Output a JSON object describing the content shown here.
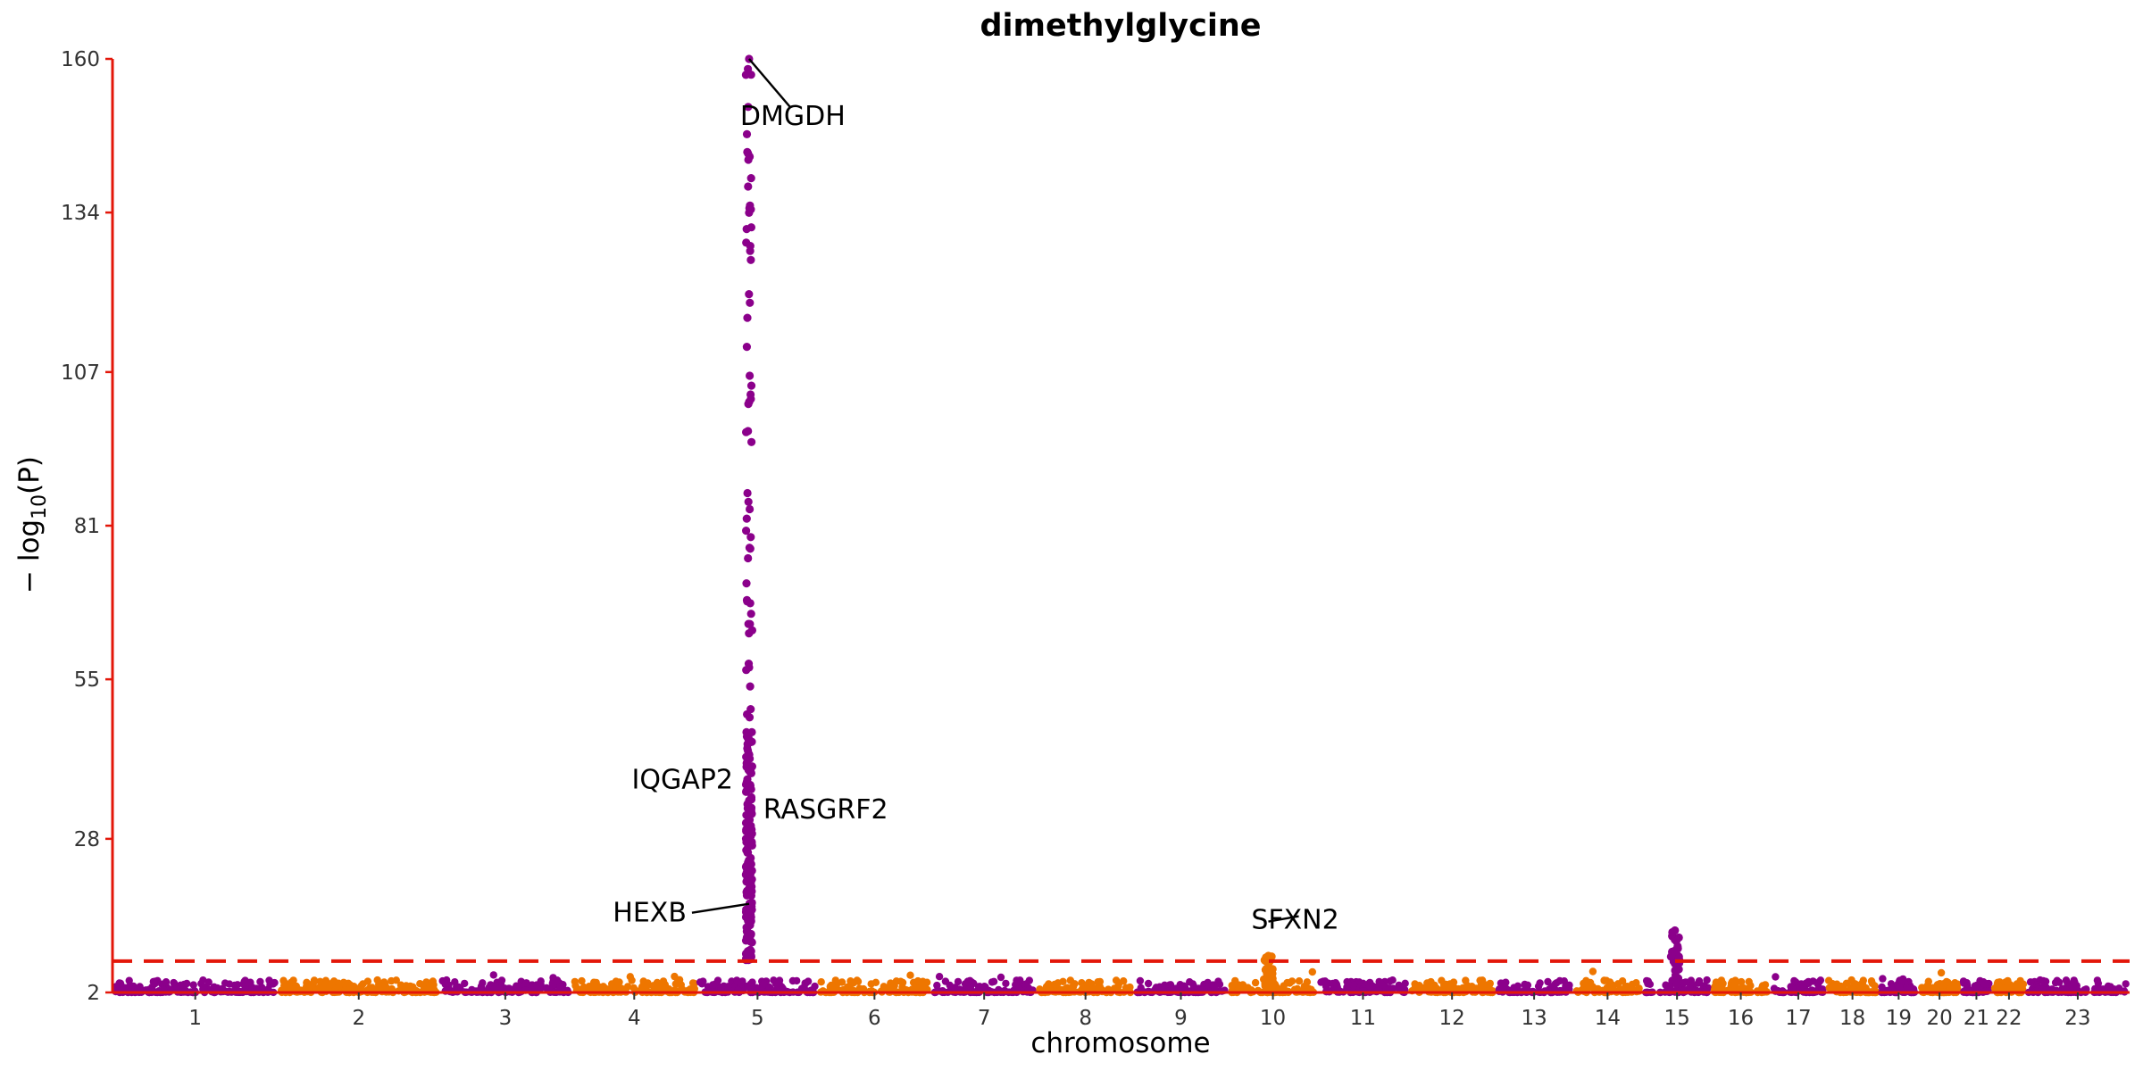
{
  "chart_data": {
    "type": "scatter",
    "subtype": "manhattan",
    "title": "dimethylglycine",
    "xlabel": "chromosome",
    "ylabel": "− log10(P)",
    "ylim": [
      2,
      160
    ],
    "y_ticks": [
      2,
      28,
      55,
      81,
      107,
      134,
      160
    ],
    "chromosomes": [
      "1",
      "2",
      "3",
      "4",
      "5",
      "6",
      "7",
      "8",
      "9",
      "10",
      "11",
      "12",
      "13",
      "14",
      "15",
      "16",
      "17",
      "18",
      "19",
      "20",
      "21",
      "22",
      "23"
    ],
    "chromosome_sizes": [
      249,
      243,
      198,
      190,
      181,
      171,
      159,
      146,
      141,
      136,
      135,
      133,
      114,
      107,
      102,
      90,
      83,
      80,
      59,
      64,
      47,
      51,
      156
    ],
    "series_colors": [
      "#8b008b",
      "#ee7600"
    ],
    "significance_threshold": {
      "value": 7.3,
      "color": "#e3170a",
      "style": "dashed"
    },
    "peaks": [
      {
        "chromosome": "5",
        "position_fraction": 0.43,
        "max_y": 160,
        "min_y": 7.5
      },
      {
        "chromosome": "10",
        "position_fraction": 0.45,
        "max_y": 8.2,
        "min_y": 3
      },
      {
        "chromosome": "15",
        "position_fraction": 0.47,
        "max_y": 12.5,
        "min_y": 3
      }
    ],
    "annotations": [
      {
        "label": "DMGDH",
        "chromosome": "5",
        "y": 160
      },
      {
        "label": "IQGAP2",
        "chromosome": "5",
        "y": 38
      },
      {
        "label": "RASGRF2",
        "chromosome": "5",
        "y": 33
      },
      {
        "label": "HEXB",
        "chromosome": "5",
        "y": 17
      },
      {
        "label": "SFXN2",
        "chromosome": "10",
        "y": 14
      }
    ],
    "axis_color": "#e3170a",
    "grid": false,
    "legend": "none"
  }
}
